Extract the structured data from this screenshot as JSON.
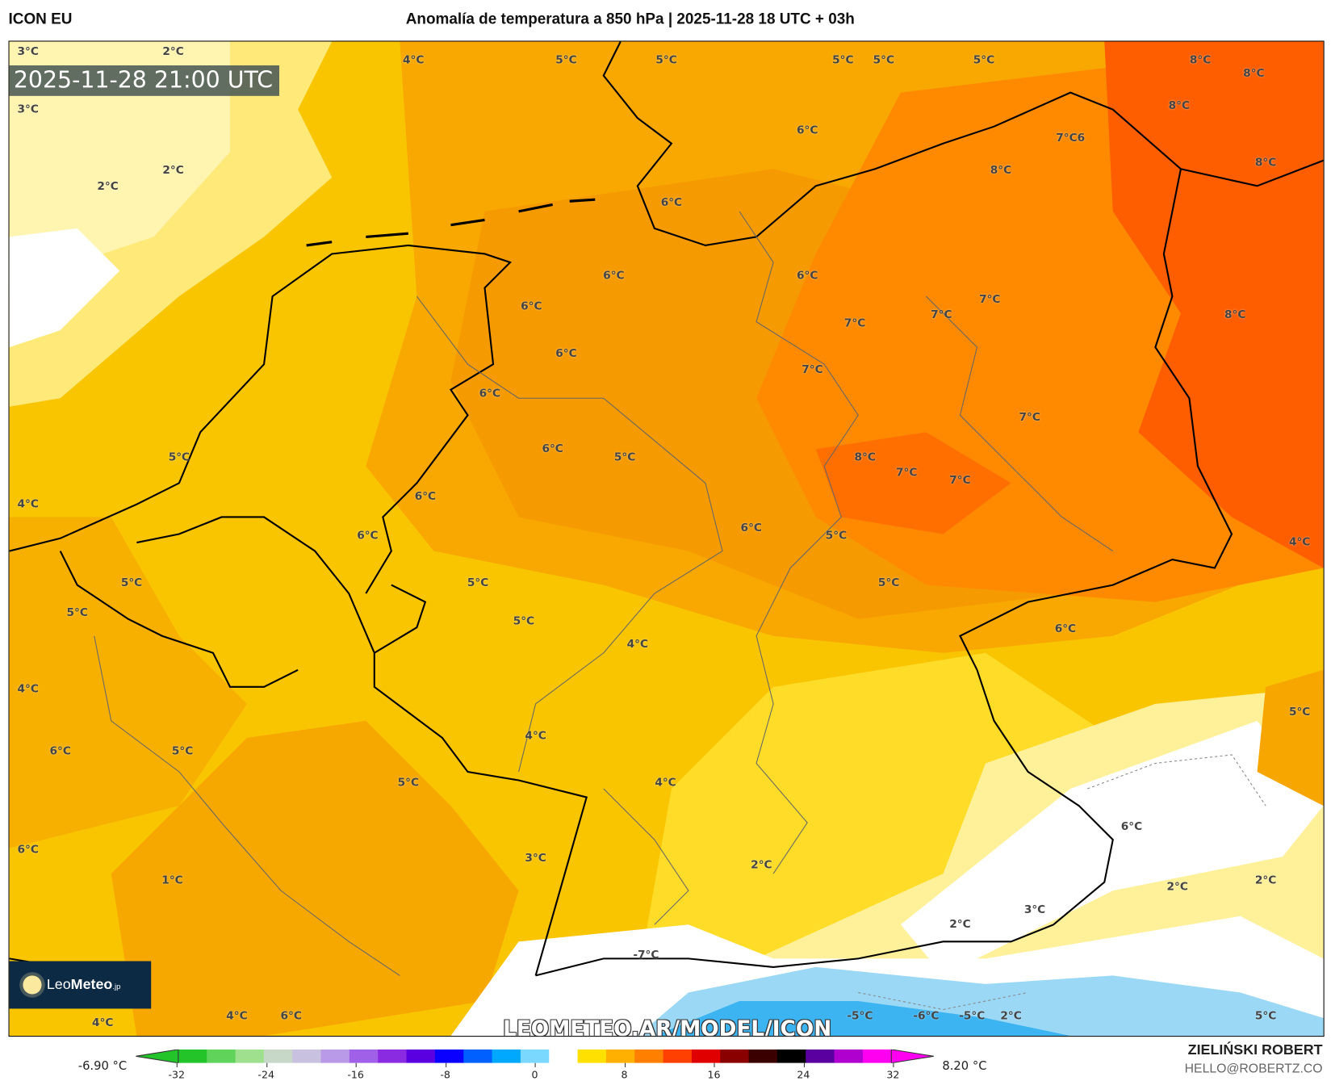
{
  "header": {
    "model": "ICON EU",
    "title": "Anomalía de temperatura a 850 hPa | 2025-11-28 18 UTC + 03h"
  },
  "map": {
    "valid_time": "2025-11-28 21:00 UTC",
    "watermark": "LEOMETEO.AR/MODEL/ICON",
    "logo": {
      "text_light": "Leo",
      "text_bold": "Meteo",
      "suffix": ".jp"
    },
    "labels": [
      "3°C",
      "2°C",
      "4°C",
      "5°C",
      "5°C",
      "5°C",
      "5°C",
      "5°C",
      "8°C",
      "8°C",
      "3°C",
      "2°C",
      "2°C",
      "6°C",
      "7°C6",
      "8°C",
      "8°C",
      "8°C",
      "6°C",
      "6°C",
      "6°C",
      "6°C",
      "6°C",
      "7°C",
      "7°C",
      "7°C",
      "8°C",
      "7°C",
      "6°C",
      "7°C",
      "5°C",
      "5°C",
      "8°C",
      "7°C",
      "7°C",
      "4°C",
      "6°C",
      "6°C",
      "6°C",
      "6°C",
      "5°C",
      "5°C",
      "5°C",
      "5°C",
      "5°C",
      "5°C",
      "4°C",
      "6°C",
      "4°C",
      "4°C",
      "6°C",
      "5°C",
      "4°C",
      "5°C",
      "4°C",
      "3°C",
      "2°C",
      "6°C",
      "1°C",
      "2°C",
      "2°C",
      "2°C",
      "3°C",
      "-7°C",
      "-5°C",
      "-6°C",
      "-5°C",
      "2°C",
      "5°C",
      "6°C",
      "5°C",
      "4°C",
      "4°C",
      "6°C"
    ]
  },
  "colorbar": {
    "min_label": "-6.90 °C",
    "max_label": "8.20 °C",
    "ticks": [
      "-32",
      "-24",
      "-16",
      "-8",
      "0",
      "8",
      "16",
      "24",
      "32"
    ],
    "colors": [
      "#22c42a",
      "#5fd35a",
      "#9ee08e",
      "#c8d8c8",
      "#c9c1e0",
      "#b89ae8",
      "#a060e8",
      "#8a2be2",
      "#5a00e0",
      "#0a00ff",
      "#0060ff",
      "#00a8ff",
      "#7ad8ff",
      "#ffffff",
      "#ffe000",
      "#ffb000",
      "#ff8000",
      "#ff4000",
      "#e00000",
      "#8a0000",
      "#3a0000",
      "#000000",
      "#5a00a0",
      "#b000d0",
      "#ff00f0"
    ]
  },
  "credits": {
    "author": "ZIELIŃSKI ROBERT",
    "email": "HELLO@ROBERTZ.CO"
  }
}
